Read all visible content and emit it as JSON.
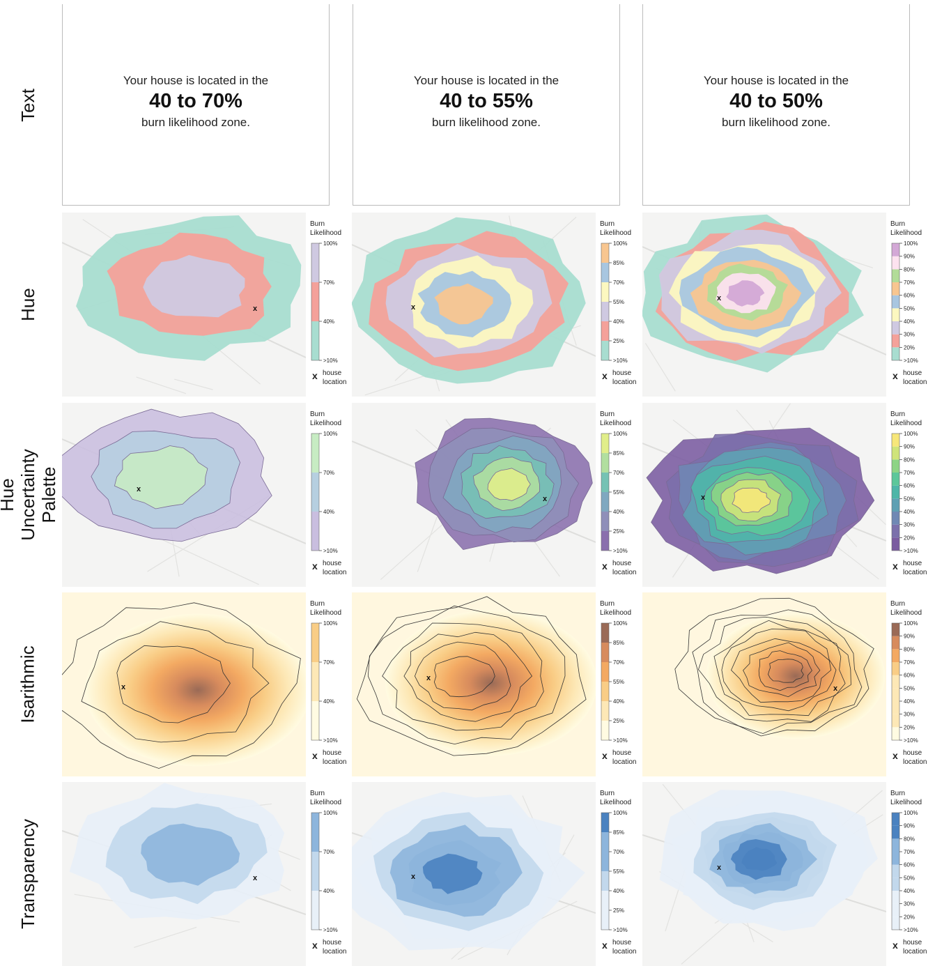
{
  "row_labels": [
    "Text",
    "Hue",
    "Hue Uncertainty Palette",
    "Isarithmic",
    "Transparency"
  ],
  "text_cards": [
    {
      "line1": "Your house is located in the",
      "range": "40 to 70%",
      "line3": "burn likelihood zone."
    },
    {
      "line1": "Your house is located in the",
      "range": "40 to 55%",
      "line3": "burn likelihood zone."
    },
    {
      "line1": "Your house is located in the",
      "range": "40 to 50%",
      "line3": "burn likelihood zone."
    }
  ],
  "legend": {
    "title_line1": "Burn",
    "title_line2": "Likelihood",
    "house_marker": "x",
    "house_line1": "house",
    "house_line2": "location"
  },
  "legend_ticks": [
    [
      ">10%",
      "40%",
      "70%",
      "100%"
    ],
    [
      ">10%",
      "25%",
      "40%",
      "55%",
      "70%",
      "85%",
      "100%"
    ],
    [
      ">10%",
      "20%",
      "30%",
      "40%",
      "50%",
      "60%",
      "70%",
      "80%",
      "90%",
      "100%"
    ]
  ],
  "palettes": {
    "hue": [
      [
        "#a8ddd0",
        "#f4a19a",
        "#cfc9e1"
      ],
      [
        "#a8ddd0",
        "#f4a19a",
        "#cfc9e1",
        "#fcf8c0",
        "#a8c6e0",
        "#f8c690"
      ],
      [
        "#a8ddd0",
        "#f4a19a",
        "#cfc9e1",
        "#fcf8c0",
        "#a8c6e0",
        "#f8c690",
        "#b2dc98",
        "#fde2ef",
        "#d3a8d6"
      ]
    ],
    "hue_uncertainty": [
      [
        "#c9bedf",
        "#b6cfe0",
        "#c7ecc3"
      ],
      [
        "#8a6fad",
        "#8f8fb9",
        "#7fa8c0",
        "#76c2b4",
        "#b1df9f",
        "#e1ee8a"
      ],
      [
        "#7a5ba0",
        "#7b70ab",
        "#6f88b4",
        "#5ea0b3",
        "#4eb6a8",
        "#5cc79a",
        "#8dd485",
        "#cfe47a",
        "#f7e77a"
      ]
    ],
    "isarithmic": [
      "#fffbe2",
      "#fde8b6",
      "#f9cd86",
      "#f3a962",
      "#d78b5d",
      "#9a6a56"
    ],
    "transparency": [
      "#e8f0f8",
      "#c2d8ec",
      "#8db5dc",
      "#4a82c0"
    ]
  },
  "house_marker": "x"
}
